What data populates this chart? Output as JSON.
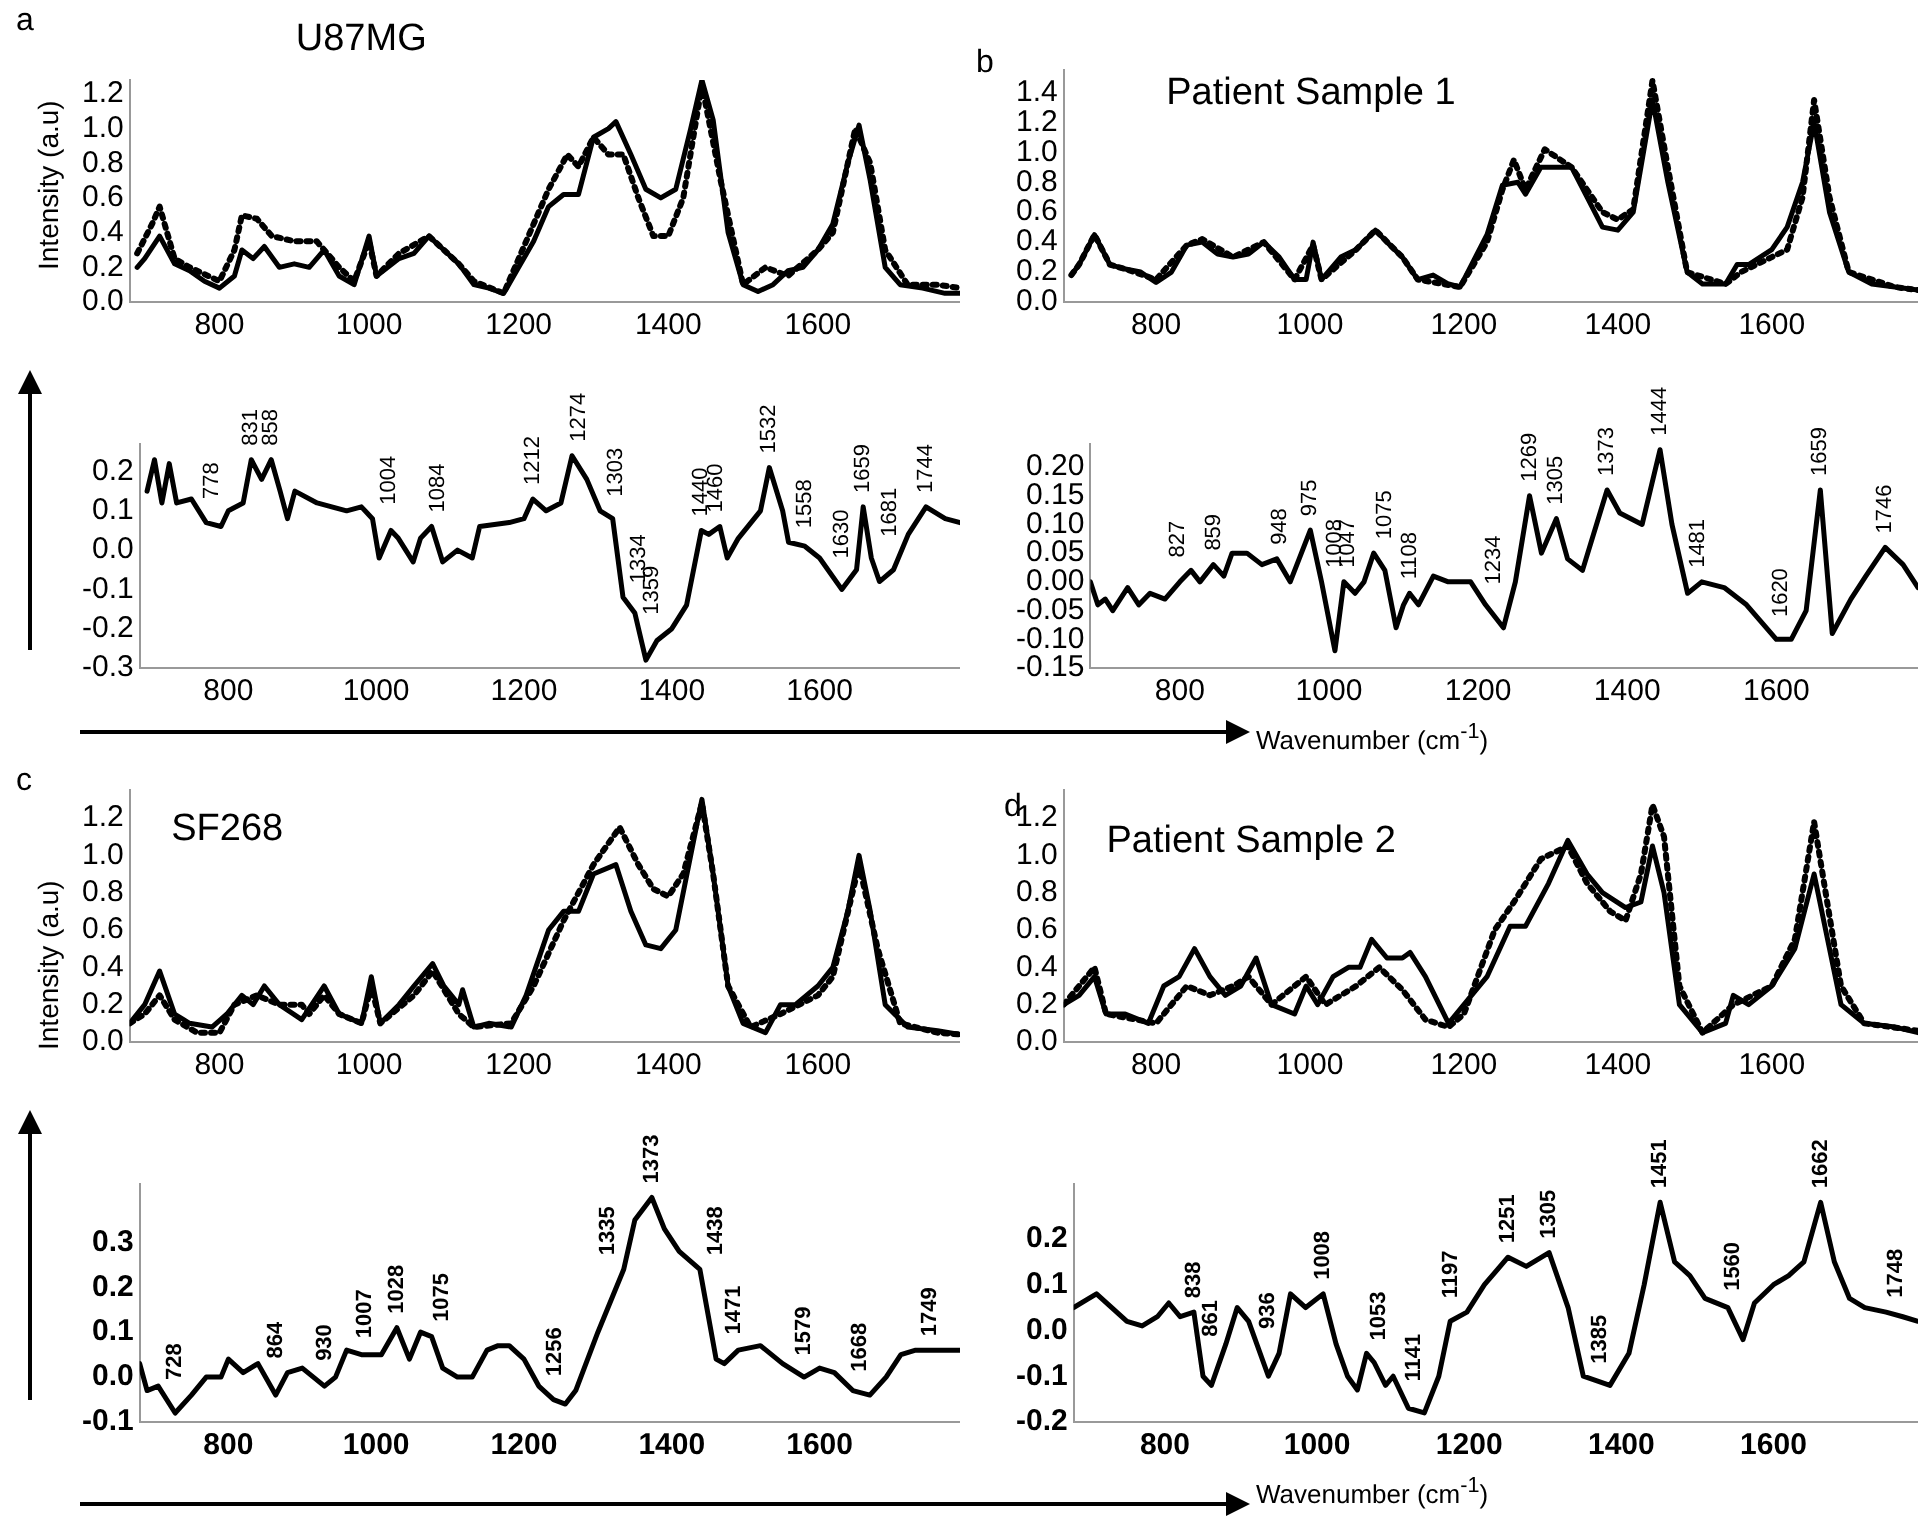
{
  "chart_data": [
    {
      "type": "line",
      "title": "U87MG",
      "ylabel": "Intensity (a.u)",
      "annotations": [
        "a"
      ],
      "xlim": [
        680,
        1790
      ],
      "xticks": [
        800,
        1000,
        1200,
        1400,
        1600
      ],
      "ylim": [
        0,
        1.28
      ],
      "yticks": [
        {
          "value": 0,
          "label": "0.0"
        },
        {
          "value": 0.2,
          "label": "0.2"
        },
        {
          "value": 0.4,
          "label": "0.4"
        },
        {
          "value": 0.6,
          "label": "0.6"
        },
        {
          "value": 0.8,
          "label": "0.8"
        },
        {
          "value": 1,
          "label": "1.0"
        },
        {
          "value": 1.2,
          "label": "1.2"
        }
      ],
      "series": [
        {
          "color": "#000000",
          "line_style": "solid",
          "x": [
            690,
            700,
            720,
            740,
            760,
            780,
            800,
            820,
            830,
            845,
            860,
            880,
            900,
            920,
            940,
            960,
            980,
            1000,
            1010,
            1040,
            1060,
            1080,
            1100,
            1120,
            1140,
            1160,
            1180,
            1200,
            1220,
            1240,
            1260,
            1280,
            1300,
            1320,
            1330,
            1350,
            1370,
            1390,
            1410,
            1430,
            1445,
            1460,
            1480,
            1500,
            1520,
            1540,
            1560,
            1580,
            1600,
            1620,
            1640,
            1655,
            1670,
            1690,
            1710,
            1740,
            1770,
            1790
          ],
          "values": [
            0.2,
            0.25,
            0.38,
            0.22,
            0.18,
            0.12,
            0.08,
            0.15,
            0.3,
            0.25,
            0.32,
            0.2,
            0.22,
            0.2,
            0.3,
            0.15,
            0.1,
            0.38,
            0.15,
            0.25,
            0.28,
            0.38,
            0.3,
            0.22,
            0.1,
            0.08,
            0.05,
            0.2,
            0.35,
            0.55,
            0.62,
            0.62,
            0.95,
            1.0,
            1.04,
            0.85,
            0.65,
            0.6,
            0.65,
            1.0,
            1.28,
            1.05,
            0.4,
            0.1,
            0.06,
            0.1,
            0.18,
            0.2,
            0.3,
            0.45,
            0.8,
            1.02,
            0.7,
            0.2,
            0.1,
            0.08,
            0.05,
            0.05
          ]
        },
        {
          "color": "#000000",
          "line_style": "dotted",
          "x": [
            690,
            710,
            720,
            740,
            760,
            800,
            820,
            830,
            850,
            870,
            900,
            930,
            960,
            980,
            1000,
            1010,
            1040,
            1080,
            1120,
            1140,
            1180,
            1200,
            1240,
            1265,
            1280,
            1300,
            1320,
            1340,
            1360,
            1380,
            1400,
            1420,
            1445,
            1470,
            1500,
            1530,
            1560,
            1600,
            1620,
            1650,
            1670,
            1690,
            1720,
            1760,
            1790
          ],
          "values": [
            0.28,
            0.45,
            0.55,
            0.25,
            0.2,
            0.12,
            0.3,
            0.5,
            0.48,
            0.38,
            0.35,
            0.35,
            0.2,
            0.12,
            0.35,
            0.15,
            0.28,
            0.38,
            0.22,
            0.12,
            0.05,
            0.25,
            0.65,
            0.85,
            0.78,
            0.95,
            0.85,
            0.85,
            0.6,
            0.38,
            0.38,
            0.6,
            1.25,
            0.7,
            0.1,
            0.2,
            0.15,
            0.3,
            0.4,
            1.0,
            0.8,
            0.3,
            0.1,
            0.1,
            0.08
          ]
        }
      ]
    },
    {
      "type": "line",
      "xlim": [
        680,
        1790
      ],
      "xticks": [
        800,
        1000,
        1200,
        1400,
        1600
      ],
      "ylim": [
        -0.3,
        0.27
      ],
      "yticks": [
        {
          "value": -0.3,
          "label": "-0.3"
        },
        {
          "value": -0.2,
          "label": "-0.2"
        },
        {
          "value": -0.1,
          "label": "-0.1"
        },
        {
          "value": 0,
          "label": "0.0"
        },
        {
          "value": 0.1,
          "label": "0.1"
        },
        {
          "value": 0.2,
          "label": "0.2"
        }
      ],
      "series": [
        {
          "color": "#000000",
          "line_style": "solid",
          "x": [
            690,
            700,
            710,
            720,
            730,
            750,
            770,
            790,
            800,
            820,
            831,
            845,
            858,
            870,
            880,
            890,
            920,
            960,
            980,
            995,
            1004,
            1020,
            1030,
            1050,
            1060,
            1075,
            1090,
            1110,
            1130,
            1140,
            1180,
            1200,
            1212,
            1230,
            1250,
            1265,
            1285,
            1303,
            1320,
            1334,
            1350,
            1365,
            1380,
            1400,
            1420,
            1440,
            1450,
            1465,
            1475,
            1490,
            1520,
            1532,
            1550,
            1558,
            1580,
            1600,
            1630,
            1650,
            1659,
            1670,
            1681,
            1700,
            1720,
            1744,
            1770,
            1790
          ],
          "values": [
            0.15,
            0.23,
            0.12,
            0.22,
            0.12,
            0.13,
            0.07,
            0.06,
            0.1,
            0.12,
            0.23,
            0.18,
            0.23,
            0.15,
            0.08,
            0.15,
            0.12,
            0.1,
            0.11,
            0.08,
            -0.02,
            0.05,
            0.03,
            -0.03,
            0.03,
            0.06,
            -0.03,
            0.0,
            -0.02,
            0.06,
            0.07,
            0.08,
            0.13,
            0.1,
            0.12,
            0.24,
            0.18,
            0.1,
            0.08,
            -0.12,
            -0.16,
            -0.28,
            -0.23,
            -0.2,
            -0.14,
            0.05,
            0.04,
            0.06,
            -0.02,
            0.03,
            0.1,
            0.21,
            0.1,
            0.02,
            0.01,
            -0.02,
            -0.1,
            -0.05,
            0.11,
            -0.02,
            -0.08,
            -0.05,
            0.04,
            0.11,
            0.08,
            0.07
          ]
        }
      ],
      "annotations": [
        {
          "text": "778",
          "x": 778,
          "y": 0.06
        },
        {
          "text": "831",
          "x": 831,
          "y": 0.23
        },
        {
          "text": "858",
          "x": 858,
          "y": 0.23
        },
        {
          "text": "1004",
          "x": 1004,
          "y": 0.08
        },
        {
          "text": "1084",
          "x": 1084,
          "y": 0.06
        },
        {
          "text": "1212",
          "x": 1212,
          "y": 0.13
        },
        {
          "text": "1274",
          "x": 1274,
          "y": 0.24
        },
        {
          "text": "1303",
          "x": 1303,
          "y": 0.1
        },
        {
          "text": "1334",
          "x": 1334,
          "y": -0.12
        },
        {
          "text": "1359",
          "x": 1359,
          "y": -0.2
        },
        {
          "text": "1440",
          "x": 1440,
          "y": 0.05
        },
        {
          "text": "1460",
          "x": 1460,
          "y": 0.06
        },
        {
          "text": "1532",
          "x": 1532,
          "y": 0.21
        },
        {
          "text": "1558",
          "x": 1558,
          "y": 0.02
        },
        {
          "text": "1630",
          "x": 1630,
          "y": -0.1
        },
        {
          "text": "1659",
          "x": 1659,
          "y": 0.11
        },
        {
          "text": "1681",
          "x": 1681,
          "y": -0.08
        },
        {
          "text": "1744",
          "x": 1744,
          "y": 0.11
        }
      ]
    },
    {
      "type": "line",
      "title": "Patient Sample 1",
      "annotations": [
        "b"
      ],
      "xlim": [
        680,
        1790
      ],
      "xticks": [
        800,
        1000,
        1200,
        1400,
        1600
      ],
      "ylim": [
        0,
        1.55
      ],
      "yticks": [
        {
          "value": 0,
          "label": "0.0"
        },
        {
          "value": 0.2,
          "label": "0.2"
        },
        {
          "value": 0.4,
          "label": "0.4"
        },
        {
          "value": 0.6,
          "label": "0.6"
        },
        {
          "value": 0.8,
          "label": "0.8"
        },
        {
          "value": 1,
          "label": "1.0"
        },
        {
          "value": 1.2,
          "label": "1.2"
        },
        {
          "value": 1.4,
          "label": "1.4"
        }
      ],
      "series": [
        {
          "color": "#000000",
          "line_style": "solid",
          "x": [
            690,
            700,
            720,
            740,
            760,
            780,
            800,
            820,
            840,
            860,
            880,
            900,
            920,
            940,
            960,
            980,
            995,
            1004,
            1015,
            1040,
            1060,
            1085,
            1100,
            1120,
            1140,
            1160,
            1180,
            1195,
            1210,
            1230,
            1250,
            1270,
            1280,
            1300,
            1320,
            1340,
            1360,
            1380,
            1400,
            1420,
            1445,
            1465,
            1490,
            1510,
            1540,
            1555,
            1570,
            1600,
            1620,
            1640,
            1655,
            1675,
            1700,
            1730,
            1760,
            1790
          ],
          "values": [
            0.18,
            0.25,
            0.45,
            0.25,
            0.22,
            0.2,
            0.13,
            0.2,
            0.38,
            0.4,
            0.32,
            0.3,
            0.32,
            0.4,
            0.3,
            0.15,
            0.15,
            0.4,
            0.15,
            0.3,
            0.35,
            0.48,
            0.4,
            0.3,
            0.15,
            0.18,
            0.12,
            0.1,
            0.25,
            0.45,
            0.78,
            0.8,
            0.72,
            0.9,
            0.9,
            0.9,
            0.7,
            0.5,
            0.48,
            0.6,
            1.35,
            0.8,
            0.2,
            0.12,
            0.12,
            0.25,
            0.25,
            0.35,
            0.5,
            0.8,
            1.2,
            0.6,
            0.2,
            0.12,
            0.1,
            0.08
          ]
        },
        {
          "color": "#000000",
          "line_style": "dotted",
          "x": [
            690,
            700,
            720,
            740,
            760,
            800,
            840,
            860,
            900,
            940,
            980,
            1004,
            1015,
            1060,
            1085,
            1120,
            1140,
            1195,
            1230,
            1250,
            1265,
            1280,
            1305,
            1340,
            1380,
            1400,
            1420,
            1445,
            1465,
            1490,
            1540,
            1560,
            1600,
            1620,
            1640,
            1655,
            1675,
            1700,
            1760,
            1790
          ],
          "values": [
            0.18,
            0.25,
            0.45,
            0.25,
            0.22,
            0.15,
            0.38,
            0.42,
            0.3,
            0.4,
            0.15,
            0.38,
            0.15,
            0.35,
            0.48,
            0.3,
            0.15,
            0.1,
            0.4,
            0.75,
            0.95,
            0.75,
            1.02,
            0.9,
            0.6,
            0.55,
            0.62,
            1.48,
            0.9,
            0.2,
            0.12,
            0.2,
            0.3,
            0.35,
            0.7,
            1.35,
            0.7,
            0.2,
            0.1,
            0.08
          ]
        }
      ]
    },
    {
      "type": "line",
      "xlabel": "Wavenumber (cm$^{-1}$)",
      "xlim": [
        680,
        1790
      ],
      "xticks": [
        800,
        1000,
        1200,
        1400,
        1600
      ],
      "ylim": [
        -0.15,
        0.24
      ],
      "yticks": [
        {
          "value": -0.15,
          "label": "-0.15"
        },
        {
          "value": -0.1,
          "label": "-0.10"
        },
        {
          "value": -0.05,
          "label": "-0.05"
        },
        {
          "value": 0,
          "label": "0.00"
        },
        {
          "value": 0.05,
          "label": "0.05"
        },
        {
          "value": 0.1,
          "label": "0.10"
        },
        {
          "value": 0.15,
          "label": "0.15"
        },
        {
          "value": 0.2,
          "label": "0.20"
        }
      ],
      "series": [
        {
          "color": "#000000",
          "line_style": "solid",
          "x": [
            680,
            690,
            700,
            710,
            730,
            745,
            760,
            780,
            800,
            815,
            827,
            845,
            859,
            870,
            890,
            910,
            930,
            948,
            960,
            975,
            990,
            1008,
            1020,
            1035,
            1047,
            1060,
            1075,
            1090,
            1100,
            1108,
            1120,
            1140,
            1160,
            1190,
            1210,
            1234,
            1250,
            1269,
            1285,
            1305,
            1320,
            1340,
            1373,
            1390,
            1420,
            1444,
            1460,
            1481,
            1500,
            1530,
            1560,
            1580,
            1600,
            1620,
            1640,
            1659,
            1675,
            1700,
            1720,
            1746,
            1770,
            1790
          ],
          "values": [
            0.0,
            -0.04,
            -0.03,
            -0.05,
            -0.01,
            -0.04,
            -0.02,
            -0.03,
            0.0,
            0.02,
            0.0,
            0.03,
            0.01,
            0.05,
            0.05,
            0.03,
            0.04,
            0.0,
            0.04,
            0.09,
            0.0,
            -0.12,
            0.0,
            -0.02,
            0.0,
            0.05,
            0.02,
            -0.08,
            -0.04,
            -0.02,
            -0.04,
            0.01,
            0.0,
            0.0,
            -0.04,
            -0.08,
            0.0,
            0.15,
            0.05,
            0.11,
            0.04,
            0.02,
            0.16,
            0.12,
            0.1,
            0.23,
            0.1,
            -0.02,
            0.0,
            -0.01,
            -0.04,
            -0.07,
            -0.1,
            -0.1,
            -0.05,
            0.16,
            -0.09,
            -0.03,
            0.01,
            0.06,
            0.03,
            -0.01
          ]
        }
      ],
      "annotations": [
        {
          "text": "827",
          "x": 827,
          "y": 0.0
        },
        {
          "text": "859",
          "x": 859,
          "y": 0.01
        },
        {
          "text": "948",
          "x": 948,
          "y": 0.0
        },
        {
          "text": "975",
          "x": 975,
          "y": 0.09
        },
        {
          "text": "1008",
          "x": 1008,
          "y": 0.0
        },
        {
          "text": "1047",
          "x": 1047,
          "y": 0.0
        },
        {
          "text": "1075",
          "x": 1075,
          "y": 0.05
        },
        {
          "text": "1108",
          "x": 1108,
          "y": -0.02
        },
        {
          "text": "1234",
          "x": 1234,
          "y": -0.08
        },
        {
          "text": "1269",
          "x": 1269,
          "y": 0.15
        },
        {
          "text": "1305",
          "x": 1305,
          "y": 0.11
        },
        {
          "text": "1373",
          "x": 1373,
          "y": 0.16
        },
        {
          "text": "1444",
          "x": 1444,
          "y": 0.23
        },
        {
          "text": "1481",
          "x": 1481,
          "y": -0.02
        },
        {
          "text": "1620",
          "x": 1620,
          "y": -0.1
        },
        {
          "text": "1659",
          "x": 1659,
          "y": 0.16
        },
        {
          "text": "1746",
          "x": 1746,
          "y": 0.06
        }
      ]
    },
    {
      "type": "line",
      "title": "SF268",
      "ylabel": "Intensity (a.u)",
      "annotations": [
        "c"
      ],
      "xlim": [
        680,
        1790
      ],
      "xticks": [
        800,
        1000,
        1200,
        1400,
        1600
      ],
      "ylim": [
        0,
        1.35
      ],
      "yticks": [
        {
          "value": 0,
          "label": "0.0"
        },
        {
          "value": 0.2,
          "label": "0.2"
        },
        {
          "value": 0.4,
          "label": "0.4"
        },
        {
          "value": 0.6,
          "label": "0.6"
        },
        {
          "value": 0.8,
          "label": "0.8"
        },
        {
          "value": 1,
          "label": "1.0"
        },
        {
          "value": 1.2,
          "label": "1.2"
        }
      ],
      "series": [
        {
          "color": "#000000",
          "line_style": "solid",
          "x": [
            680,
            700,
            720,
            740,
            760,
            790,
            810,
            830,
            845,
            860,
            880,
            910,
            940,
            960,
            990,
            1003,
            1015,
            1040,
            1060,
            1085,
            1100,
            1120,
            1125,
            1140,
            1160,
            1190,
            1210,
            1240,
            1260,
            1280,
            1300,
            1330,
            1350,
            1370,
            1390,
            1410,
            1430,
            1445,
            1460,
            1480,
            1500,
            1530,
            1550,
            1570,
            1600,
            1620,
            1640,
            1655,
            1670,
            1690,
            1720,
            1760,
            1790
          ],
          "values": [
            0.1,
            0.2,
            0.38,
            0.15,
            0.1,
            0.08,
            0.15,
            0.25,
            0.2,
            0.3,
            0.2,
            0.12,
            0.3,
            0.15,
            0.1,
            0.35,
            0.1,
            0.2,
            0.3,
            0.42,
            0.3,
            0.2,
            0.28,
            0.08,
            0.1,
            0.08,
            0.25,
            0.6,
            0.7,
            0.7,
            0.9,
            0.95,
            0.7,
            0.52,
            0.5,
            0.6,
            1.0,
            1.3,
            0.9,
            0.3,
            0.1,
            0.05,
            0.2,
            0.2,
            0.3,
            0.4,
            0.7,
            1.0,
            0.7,
            0.2,
            0.08,
            0.06,
            0.04
          ]
        },
        {
          "color": "#000000",
          "line_style": "dotted",
          "x": [
            680,
            700,
            720,
            740,
            770,
            800,
            820,
            850,
            880,
            910,
            920,
            940,
            960,
            990,
            1003,
            1015,
            1060,
            1085,
            1120,
            1140,
            1190,
            1220,
            1260,
            1300,
            1335,
            1360,
            1380,
            1400,
            1420,
            1445,
            1460,
            1480,
            1510,
            1550,
            1600,
            1620,
            1655,
            1680,
            1710,
            1760,
            1790
          ],
          "values": [
            0.1,
            0.15,
            0.25,
            0.12,
            0.05,
            0.05,
            0.2,
            0.25,
            0.2,
            0.2,
            0.15,
            0.25,
            0.15,
            0.1,
            0.3,
            0.1,
            0.25,
            0.38,
            0.15,
            0.08,
            0.1,
            0.3,
            0.65,
            0.95,
            1.15,
            0.95,
            0.82,
            0.78,
            0.9,
            1.28,
            0.9,
            0.3,
            0.08,
            0.15,
            0.25,
            0.35,
            0.95,
            0.5,
            0.1,
            0.05,
            0.04
          ]
        }
      ]
    },
    {
      "type": "line",
      "xlim": [
        680,
        1790
      ],
      "xticks": [
        800,
        1000,
        1200,
        1400,
        1600
      ],
      "ylim": [
        -0.1,
        0.43
      ],
      "yticks": [
        {
          "value": -0.1,
          "label": "-0.1"
        },
        {
          "value": 0,
          "label": "0.0"
        },
        {
          "value": 0.1,
          "label": "0.1"
        },
        {
          "value": 0.2,
          "label": "0.2"
        },
        {
          "value": 0.3,
          "label": "0.3"
        }
      ],
      "series": [
        {
          "color": "#000000",
          "line_style": "solid",
          "x": [
            680,
            690,
            705,
            728,
            750,
            770,
            790,
            800,
            820,
            840,
            864,
            880,
            900,
            915,
            930,
            945,
            960,
            980,
            1007,
            1028,
            1045,
            1060,
            1075,
            1090,
            1110,
            1130,
            1150,
            1165,
            1180,
            1200,
            1220,
            1240,
            1256,
            1270,
            1300,
            1320,
            1335,
            1350,
            1373,
            1390,
            1410,
            1438,
            1460,
            1471,
            1490,
            1520,
            1550,
            1579,
            1600,
            1620,
            1645,
            1668,
            1690,
            1710,
            1730,
            1749,
            1770,
            1790
          ],
          "values": [
            0.03,
            -0.03,
            -0.02,
            -0.08,
            -0.04,
            0.0,
            0.0,
            0.04,
            0.01,
            0.03,
            -0.04,
            0.01,
            0.02,
            0.0,
            -0.02,
            0.0,
            0.06,
            0.05,
            0.05,
            0.11,
            0.04,
            0.1,
            0.09,
            0.02,
            0.0,
            0.0,
            0.06,
            0.07,
            0.07,
            0.04,
            -0.02,
            -0.05,
            -0.06,
            -0.03,
            0.1,
            0.18,
            0.24,
            0.35,
            0.4,
            0.33,
            0.28,
            0.24,
            0.04,
            0.03,
            0.06,
            0.07,
            0.03,
            0.0,
            0.02,
            0.01,
            -0.03,
            -0.04,
            0.0,
            0.05,
            0.06,
            0.06,
            0.06,
            0.06
          ]
        }
      ],
      "annotations": [
        {
          "text": "728",
          "x": 728,
          "y": -0.08
        },
        {
          "text": "864",
          "x": 864,
          "y": -0.04
        },
        {
          "text": "930",
          "x": 930,
          "y": -0.02
        },
        {
          "text": "1007",
          "x": 1007,
          "y": 0.05
        },
        {
          "text": "1028",
          "x": 1028,
          "y": 0.11
        },
        {
          "text": "1075",
          "x": 1075,
          "y": 0.09
        },
        {
          "text": "1256",
          "x": 1256,
          "y": -0.06
        },
        {
          "text": "1335",
          "x": 1335,
          "y": 0.24
        },
        {
          "text": "1373",
          "x": 1373,
          "y": 0.4
        },
        {
          "text": "1438",
          "x": 1438,
          "y": 0.24
        },
        {
          "text": "1471",
          "x": 1471,
          "y": 0.03
        },
        {
          "text": "1579",
          "x": 1579,
          "y": 0.0
        },
        {
          "text": "1668",
          "x": 1668,
          "y": -0.04
        },
        {
          "text": "1749",
          "x": 1749,
          "y": 0.06
        }
      ]
    },
    {
      "type": "line",
      "title": "Patient Sample 2",
      "annotations": [
        "d"
      ],
      "xlim": [
        680,
        1790
      ],
      "xticks": [
        800,
        1000,
        1200,
        1400,
        1600
      ],
      "ylim": [
        0,
        1.35
      ],
      "yticks": [
        {
          "value": 0,
          "label": "0.0"
        },
        {
          "value": 0.2,
          "label": "0.2"
        },
        {
          "value": 0.4,
          "label": "0.4"
        },
        {
          "value": 0.6,
          "label": "0.6"
        },
        {
          "value": 0.8,
          "label": "0.8"
        },
        {
          "value": 1,
          "label": "1.0"
        },
        {
          "value": 1.2,
          "label": "1.2"
        }
      ],
      "series": [
        {
          "color": "#000000",
          "line_style": "solid",
          "x": [
            680,
            700,
            720,
            735,
            760,
            790,
            810,
            830,
            850,
            870,
            890,
            910,
            930,
            950,
            980,
            995,
            1010,
            1030,
            1050,
            1065,
            1080,
            1100,
            1120,
            1130,
            1150,
            1180,
            1200,
            1230,
            1260,
            1280,
            1310,
            1335,
            1360,
            1380,
            1410,
            1430,
            1445,
            1460,
            1480,
            1510,
            1540,
            1550,
            1570,
            1600,
            1630,
            1655,
            1670,
            1690,
            1720,
            1760,
            1790
          ],
          "values": [
            0.2,
            0.25,
            0.35,
            0.15,
            0.15,
            0.1,
            0.3,
            0.35,
            0.5,
            0.35,
            0.25,
            0.3,
            0.45,
            0.2,
            0.15,
            0.3,
            0.2,
            0.35,
            0.4,
            0.4,
            0.55,
            0.45,
            0.45,
            0.48,
            0.35,
            0.1,
            0.2,
            0.35,
            0.62,
            0.62,
            0.85,
            1.08,
            0.9,
            0.8,
            0.72,
            0.75,
            1.05,
            0.8,
            0.2,
            0.05,
            0.1,
            0.25,
            0.2,
            0.3,
            0.5,
            0.9,
            0.6,
            0.2,
            0.1,
            0.08,
            0.05
          ]
        },
        {
          "color": "#000000",
          "line_style": "dotted",
          "x": [
            680,
            720,
            735,
            800,
            840,
            870,
            900,
            920,
            950,
            995,
            1020,
            1060,
            1090,
            1120,
            1150,
            1180,
            1200,
            1240,
            1265,
            1300,
            1335,
            1360,
            1390,
            1410,
            1430,
            1445,
            1460,
            1480,
            1510,
            1550,
            1600,
            1630,
            1655,
            1670,
            1690,
            1720,
            1790
          ],
          "values": [
            0.2,
            0.4,
            0.15,
            0.1,
            0.3,
            0.25,
            0.3,
            0.35,
            0.2,
            0.35,
            0.2,
            0.3,
            0.4,
            0.28,
            0.12,
            0.08,
            0.15,
            0.6,
            0.75,
            0.98,
            1.05,
            0.85,
            0.7,
            0.65,
            0.9,
            1.27,
            1.1,
            0.3,
            0.05,
            0.2,
            0.3,
            0.55,
            1.18,
            0.8,
            0.3,
            0.1,
            0.06
          ]
        }
      ]
    },
    {
      "type": "line",
      "xlabel": "Wavenumber (cm$^{-1}$)",
      "xlim": [
        680,
        1790
      ],
      "xticks": [
        800,
        1000,
        1200,
        1400,
        1600
      ],
      "ylim": [
        -0.2,
        0.32
      ],
      "yticks": [
        {
          "value": -0.2,
          "label": "-0.2"
        },
        {
          "value": -0.1,
          "label": "-0.1"
        },
        {
          "value": 0,
          "label": "0.0"
        },
        {
          "value": 0.1,
          "label": "0.1"
        },
        {
          "value": 0.2,
          "label": "0.2"
        }
      ],
      "series": [
        {
          "color": "#000000",
          "line_style": "solid",
          "x": [
            680,
            700,
            710,
            730,
            750,
            770,
            790,
            805,
            820,
            838,
            850,
            861,
            880,
            895,
            910,
            936,
            950,
            965,
            985,
            1008,
            1025,
            1040,
            1053,
            1065,
            1075,
            1090,
            1100,
            1120,
            1141,
            1160,
            1175,
            1197,
            1220,
            1251,
            1275,
            1305,
            1330,
            1350,
            1385,
            1410,
            1430,
            1451,
            1470,
            1490,
            1510,
            1540,
            1560,
            1575,
            1600,
            1620,
            1640,
            1662,
            1680,
            1700,
            1720,
            1748,
            1770,
            1790
          ],
          "values": [
            0.05,
            0.07,
            0.08,
            0.05,
            0.02,
            0.01,
            0.03,
            0.06,
            0.03,
            0.04,
            -0.1,
            -0.12,
            -0.03,
            0.05,
            0.02,
            -0.1,
            -0.05,
            0.08,
            0.05,
            0.08,
            -0.03,
            -0.1,
            -0.13,
            -0.05,
            -0.07,
            -0.12,
            -0.1,
            -0.17,
            -0.18,
            -0.1,
            0.02,
            0.04,
            0.1,
            0.16,
            0.14,
            0.17,
            0.05,
            -0.1,
            -0.12,
            -0.05,
            0.1,
            0.28,
            0.15,
            0.12,
            0.07,
            0.05,
            -0.02,
            0.06,
            0.1,
            0.12,
            0.15,
            0.28,
            0.15,
            0.07,
            0.05,
            0.04,
            0.03,
            0.02
          ]
        }
      ],
      "annotations": [
        {
          "text": "838",
          "x": 838,
          "y": 0.04
        },
        {
          "text": "861",
          "x": 861,
          "y": -0.12
        },
        {
          "text": "936",
          "x": 936,
          "y": -0.1
        },
        {
          "text": "1008",
          "x": 1008,
          "y": 0.08
        },
        {
          "text": "1053",
          "x": 1053,
          "y": -0.13
        },
        {
          "text": "1141",
          "x": 1141,
          "y": -0.18
        },
        {
          "text": "1197",
          "x": 1197,
          "y": 0.04
        },
        {
          "text": "1251",
          "x": 1251,
          "y": 0.16
        },
        {
          "text": "1305",
          "x": 1305,
          "y": 0.17
        },
        {
          "text": "1385",
          "x": 1385,
          "y": -0.12
        },
        {
          "text": "1451",
          "x": 1451,
          "y": 0.28
        },
        {
          "text": "1560",
          "x": 1560,
          "y": -0.02
        },
        {
          "text": "1662",
          "x": 1662,
          "y": 0.28
        },
        {
          "text": "1748",
          "x": 1748,
          "y": 0.04
        }
      ]
    }
  ]
}
